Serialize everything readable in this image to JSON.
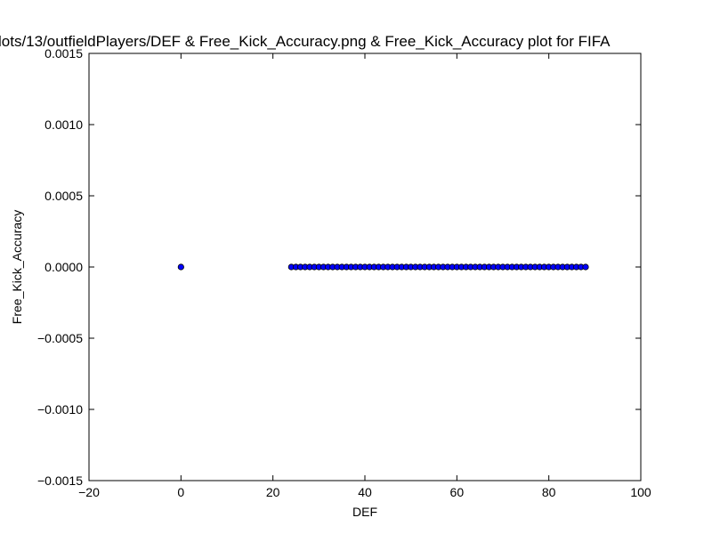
{
  "chart_data": {
    "type": "scatter",
    "title": "lots/13/outfieldPlayers/DEF & Free_Kick_Accuracy.png & Free_Kick_Accuracy plot for FIFA",
    "xlabel": "DEF",
    "ylabel": "Free_Kick_Accuracy",
    "xlim": [
      -20,
      100
    ],
    "ylim": [
      -0.0015,
      0.0015
    ],
    "xticks": [
      -20,
      0,
      20,
      40,
      60,
      80,
      100
    ],
    "xtick_labels": [
      "−20",
      "0",
      "20",
      "40",
      "60",
      "80",
      "100"
    ],
    "yticks": [
      -0.0015,
      -0.001,
      -0.0005,
      0,
      0.0005,
      0.001,
      0.0015
    ],
    "ytick_labels": [
      "−0.0015",
      "−0.0010",
      "−0.0005",
      "0.0000",
      "0.0005",
      "0.0010",
      "0.0015"
    ],
    "grid": false,
    "legend": "none",
    "marker_color": "#0000ff",
    "x": [
      0,
      24,
      25,
      26,
      27,
      28,
      29,
      30,
      31,
      32,
      33,
      34,
      35,
      36,
      37,
      38,
      39,
      40,
      41,
      42,
      43,
      44,
      45,
      46,
      47,
      48,
      49,
      50,
      51,
      52,
      53,
      54,
      55,
      56,
      57,
      58,
      59,
      60,
      61,
      62,
      63,
      64,
      65,
      66,
      67,
      68,
      69,
      70,
      71,
      72,
      73,
      74,
      75,
      76,
      77,
      78,
      79,
      80,
      81,
      82,
      83,
      84,
      85,
      86,
      87,
      88
    ],
    "y": [
      0,
      0,
      0,
      0,
      0,
      0,
      0,
      0,
      0,
      0,
      0,
      0,
      0,
      0,
      0,
      0,
      0,
      0,
      0,
      0,
      0,
      0,
      0,
      0,
      0,
      0,
      0,
      0,
      0,
      0,
      0,
      0,
      0,
      0,
      0,
      0,
      0,
      0,
      0,
      0,
      0,
      0,
      0,
      0,
      0,
      0,
      0,
      0,
      0,
      0,
      0,
      0,
      0,
      0,
      0,
      0,
      0,
      0,
      0,
      0,
      0,
      0,
      0,
      0,
      0,
      0
    ]
  }
}
